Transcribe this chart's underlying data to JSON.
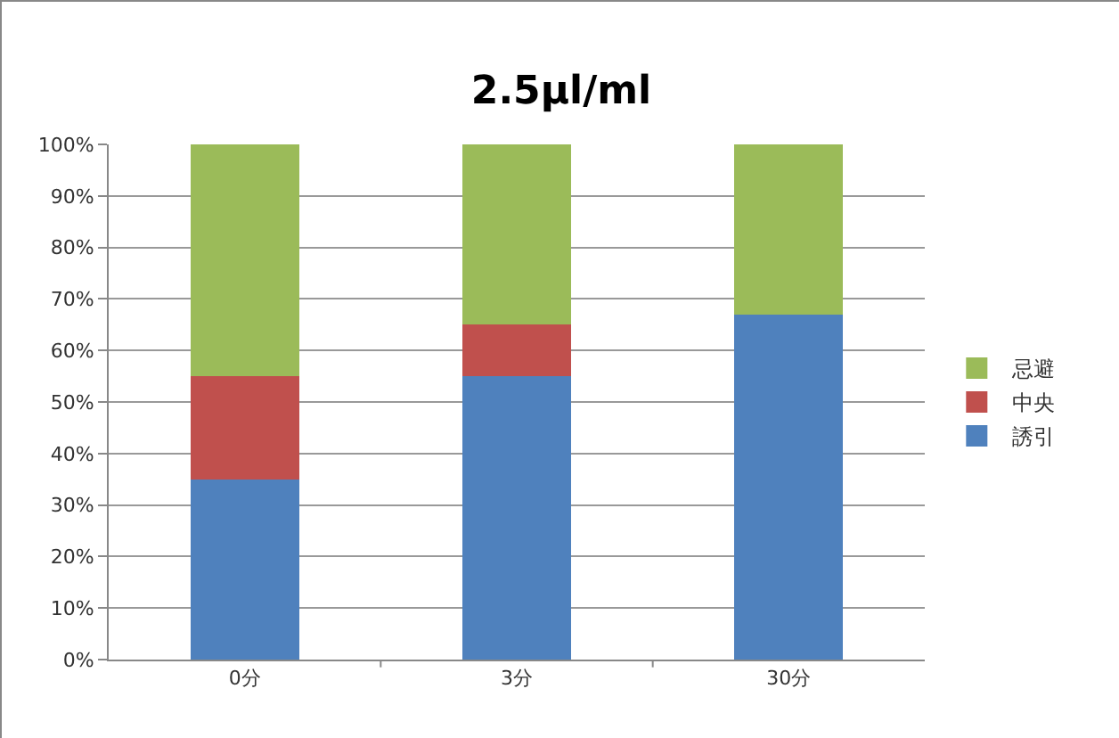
{
  "chart_data": {
    "type": "bar",
    "title": "2.5µl/ml",
    "categories": [
      "0分",
      "3分",
      "30分"
    ],
    "stacked": true,
    "series": [
      {
        "name": "誘引",
        "color": "#4f81bd",
        "values": [
          35,
          55,
          67
        ]
      },
      {
        "name": "中央",
        "color": "#c0504d",
        "values": [
          20,
          10,
          0
        ]
      },
      {
        "name": "忌避",
        "color": "#9bbb59",
        "values": [
          45,
          35,
          33
        ]
      }
    ],
    "ylim": [
      0,
      100
    ],
    "yticks": [
      {
        "value": 0,
        "label": "0%"
      },
      {
        "value": 10,
        "label": "10%"
      },
      {
        "value": 20,
        "label": "20%"
      },
      {
        "value": 30,
        "label": "30%"
      },
      {
        "value": 40,
        "label": "40%"
      },
      {
        "value": 50,
        "label": "50%"
      },
      {
        "value": 60,
        "label": "60%"
      },
      {
        "value": 70,
        "label": "70%"
      },
      {
        "value": 80,
        "label": "80%"
      },
      {
        "value": 90,
        "label": "90%"
      },
      {
        "value": 100,
        "label": "100%"
      }
    ],
    "grid": "y",
    "legend": "right"
  }
}
